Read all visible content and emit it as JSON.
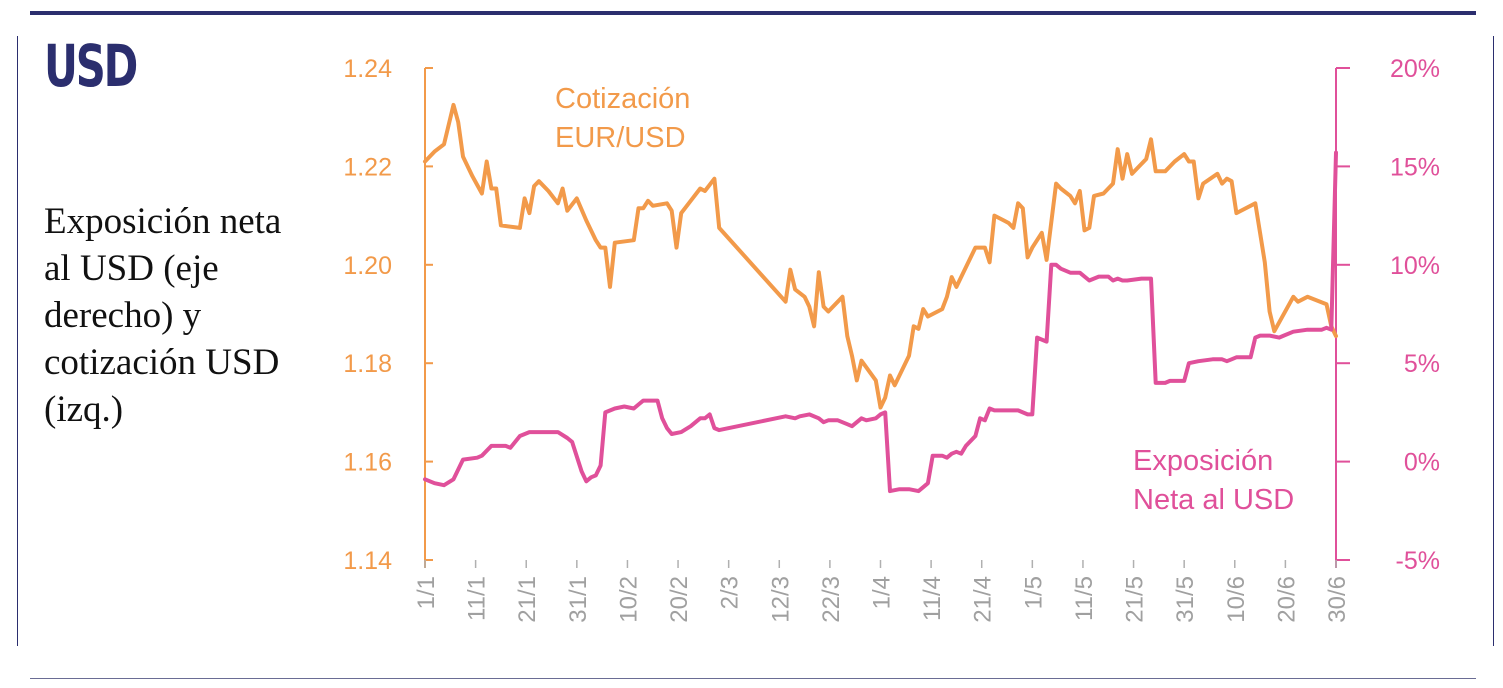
{
  "header": {
    "currency": "USD",
    "subtitle": "Exposición neta al USD (eje derecho) y cotización USD (izq.)"
  },
  "chart_data": {
    "type": "line",
    "dual_axis": true,
    "x_ticks": [
      "1/1",
      "11/1",
      "21/1",
      "31/1",
      "10/2",
      "20/2",
      "2/3",
      "12/3",
      "22/3",
      "1/4",
      "11/4",
      "21/4",
      "1/5",
      "11/5",
      "21/5",
      "31/5",
      "10/6",
      "20/6",
      "30/6"
    ],
    "y_left": {
      "ticks": [
        "1.24",
        "1.22",
        "1.20",
        "1.18",
        "1.16",
        "1.14"
      ],
      "range": [
        1.14,
        1.24
      ]
    },
    "y_right": {
      "ticks": [
        "20%",
        "15%",
        "10%",
        "5%",
        "0%",
        "-5%"
      ],
      "range": [
        -5,
        20
      ]
    },
    "grid": false,
    "legend": "inline-labels",
    "series": [
      {
        "name": "Cotización EUR/USD",
        "label_lines": [
          "Cotización",
          "EUR/USD"
        ],
        "axis": "left",
        "color": "#f29a4a",
        "points": [
          [
            0,
            1.221
          ],
          [
            2,
            1.223
          ],
          [
            4,
            1.2245
          ],
          [
            6,
            1.2325
          ],
          [
            7,
            1.229
          ],
          [
            8,
            1.222
          ],
          [
            10,
            1.218
          ],
          [
            12,
            1.2145
          ],
          [
            13,
            1.221
          ],
          [
            14,
            1.2155
          ],
          [
            15,
            1.2155
          ],
          [
            16,
            1.208
          ],
          [
            20,
            1.2075
          ],
          [
            21,
            1.2135
          ],
          [
            22,
            1.2105
          ],
          [
            23,
            1.216
          ],
          [
            24,
            1.217
          ],
          [
            26,
            1.215
          ],
          [
            28,
            1.2125
          ],
          [
            29,
            1.2155
          ],
          [
            30,
            1.211
          ],
          [
            32,
            1.2135
          ],
          [
            34,
            1.209
          ],
          [
            36,
            1.205
          ],
          [
            37,
            1.2035
          ],
          [
            38,
            1.2035
          ],
          [
            39,
            1.1955
          ],
          [
            40,
            1.2045
          ],
          [
            44,
            1.205
          ],
          [
            45,
            1.2115
          ],
          [
            46,
            1.2115
          ],
          [
            47,
            1.213
          ],
          [
            48,
            1.212
          ],
          [
            51,
            1.2125
          ],
          [
            52,
            1.211
          ],
          [
            53,
            1.2035
          ],
          [
            54,
            1.2105
          ],
          [
            56,
            1.213
          ],
          [
            58,
            1.2155
          ],
          [
            59,
            1.215
          ],
          [
            61,
            1.2175
          ],
          [
            62,
            1.2075
          ],
          [
            76,
            1.1925
          ],
          [
            77,
            1.199
          ],
          [
            78,
            1.195
          ],
          [
            80,
            1.1935
          ],
          [
            81,
            1.1915
          ],
          [
            82,
            1.1875
          ],
          [
            83,
            1.1985
          ],
          [
            84,
            1.1915
          ],
          [
            85,
            1.1905
          ],
          [
            88,
            1.1935
          ],
          [
            89,
            1.1855
          ],
          [
            90,
            1.1815
          ],
          [
            91,
            1.1765
          ],
          [
            92,
            1.1805
          ],
          [
            95,
            1.1765
          ],
          [
            96,
            1.171
          ],
          [
            97,
            1.173
          ],
          [
            98,
            1.1775
          ],
          [
            99,
            1.1755
          ],
          [
            102,
            1.1815
          ],
          [
            103,
            1.1875
          ],
          [
            104,
            1.187
          ],
          [
            105,
            1.191
          ],
          [
            106,
            1.1895
          ],
          [
            109,
            1.191
          ],
          [
            110,
            1.1935
          ],
          [
            111,
            1.1975
          ],
          [
            112,
            1.1955
          ],
          [
            116,
            1.2035
          ],
          [
            118,
            1.2035
          ],
          [
            119,
            1.2005
          ],
          [
            120,
            1.21
          ],
          [
            122,
            1.209
          ],
          [
            123,
            1.2085
          ],
          [
            124,
            1.2075
          ],
          [
            125,
            1.2125
          ],
          [
            126,
            1.2115
          ],
          [
            127,
            1.2015
          ],
          [
            128,
            1.2035
          ],
          [
            130,
            1.2065
          ],
          [
            131,
            1.201
          ],
          [
            133,
            1.2165
          ],
          [
            134,
            1.2155
          ],
          [
            136,
            1.214
          ],
          [
            137,
            1.2125
          ],
          [
            138,
            1.215
          ],
          [
            139,
            1.207
          ],
          [
            140,
            1.2075
          ],
          [
            141,
            1.214
          ],
          [
            143,
            1.2145
          ],
          [
            144,
            1.2155
          ],
          [
            145,
            1.2165
          ],
          [
            146,
            1.2235
          ],
          [
            147,
            1.2175
          ],
          [
            148,
            1.2225
          ],
          [
            149,
            1.2185
          ],
          [
            152,
            1.2215
          ],
          [
            153,
            1.2255
          ],
          [
            154,
            1.219
          ],
          [
            156,
            1.219
          ],
          [
            158,
            1.221
          ],
          [
            160,
            1.2225
          ],
          [
            161,
            1.221
          ],
          [
            162,
            1.221
          ],
          [
            163,
            1.2135
          ],
          [
            164,
            1.2165
          ],
          [
            167,
            1.2185
          ],
          [
            168,
            1.2165
          ],
          [
            169,
            1.2175
          ],
          [
            170,
            1.217
          ],
          [
            171,
            1.2105
          ],
          [
            175,
            1.2125
          ],
          [
            177,
            1.2005
          ],
          [
            178,
            1.1905
          ],
          [
            179,
            1.1865
          ],
          [
            183,
            1.1935
          ],
          [
            184,
            1.1925
          ],
          [
            186,
            1.1935
          ],
          [
            190,
            1.192
          ],
          [
            191,
            1.1875
          ],
          [
            192,
            1.1855
          ]
        ]
      },
      {
        "name": "Exposición Neta al USD",
        "label_lines": [
          "Exposición",
          "Neta al USD"
        ],
        "axis": "right",
        "color": "#e0509a",
        "points": [
          [
            0,
            -0.9
          ],
          [
            2,
            -1.1
          ],
          [
            4,
            -1.2
          ],
          [
            6,
            -0.9
          ],
          [
            8,
            0.1
          ],
          [
            11,
            0.2
          ],
          [
            12,
            0.3
          ],
          [
            14,
            0.8
          ],
          [
            17,
            0.8
          ],
          [
            18,
            0.7
          ],
          [
            20,
            1.3
          ],
          [
            22,
            1.5
          ],
          [
            28,
            1.5
          ],
          [
            30,
            1.2
          ],
          [
            31,
            1.0
          ],
          [
            33,
            -0.5
          ],
          [
            34,
            -1.0
          ],
          [
            35,
            -0.8
          ],
          [
            36,
            -0.7
          ],
          [
            37,
            -0.2
          ],
          [
            38,
            2.5
          ],
          [
            40,
            2.7
          ],
          [
            42,
            2.8
          ],
          [
            44,
            2.7
          ],
          [
            45,
            2.9
          ],
          [
            46,
            3.1
          ],
          [
            49,
            3.1
          ],
          [
            50,
            2.2
          ],
          [
            51,
            1.7
          ],
          [
            52,
            1.4
          ],
          [
            54,
            1.5
          ],
          [
            56,
            1.8
          ],
          [
            58,
            2.2
          ],
          [
            59,
            2.2
          ],
          [
            60,
            2.4
          ],
          [
            61,
            1.7
          ],
          [
            62,
            1.6
          ],
          [
            76,
            2.3
          ],
          [
            78,
            2.2
          ],
          [
            79,
            2.3
          ],
          [
            81,
            2.4
          ],
          [
            83,
            2.2
          ],
          [
            84,
            2.0
          ],
          [
            85,
            2.1
          ],
          [
            87,
            2.1
          ],
          [
            89,
            1.9
          ],
          [
            90,
            1.8
          ],
          [
            91,
            2.0
          ],
          [
            92,
            2.2
          ],
          [
            93,
            2.1
          ],
          [
            95,
            2.2
          ],
          [
            96,
            2.4
          ],
          [
            97,
            2.5
          ],
          [
            98,
            -1.5
          ],
          [
            100,
            -1.4
          ],
          [
            102,
            -1.4
          ],
          [
            104,
            -1.5
          ],
          [
            105,
            -1.3
          ],
          [
            106,
            -1.1
          ],
          [
            107,
            0.3
          ],
          [
            109,
            0.3
          ],
          [
            110,
            0.2
          ],
          [
            111,
            0.4
          ],
          [
            112,
            0.5
          ],
          [
            113,
            0.4
          ],
          [
            114,
            0.8
          ],
          [
            116,
            1.3
          ],
          [
            117,
            2.2
          ],
          [
            118,
            2.1
          ],
          [
            119,
            2.7
          ],
          [
            120,
            2.6
          ],
          [
            122,
            2.6
          ],
          [
            123,
            2.6
          ],
          [
            125,
            2.6
          ],
          [
            127,
            2.4
          ],
          [
            128,
            2.4
          ],
          [
            129,
            6.3
          ],
          [
            130,
            6.2
          ],
          [
            131,
            6.1
          ],
          [
            132,
            10.0
          ],
          [
            133,
            10.0
          ],
          [
            134,
            9.8
          ],
          [
            136,
            9.6
          ],
          [
            137,
            9.6
          ],
          [
            138,
            9.6
          ],
          [
            140,
            9.2
          ],
          [
            142,
            9.4
          ],
          [
            144,
            9.4
          ],
          [
            145,
            9.2
          ],
          [
            146,
            9.3
          ],
          [
            147,
            9.2
          ],
          [
            148,
            9.2
          ],
          [
            151,
            9.3
          ],
          [
            153,
            9.3
          ],
          [
            154,
            4.0
          ],
          [
            155,
            4.0
          ],
          [
            156,
            4.0
          ],
          [
            157,
            4.1
          ],
          [
            158,
            4.1
          ],
          [
            159,
            4.1
          ],
          [
            160,
            4.1
          ],
          [
            161,
            5.0
          ],
          [
            163,
            5.1
          ],
          [
            166,
            5.2
          ],
          [
            168,
            5.2
          ],
          [
            169,
            5.1
          ],
          [
            170,
            5.2
          ],
          [
            171,
            5.3
          ],
          [
            174,
            5.3
          ],
          [
            175,
            6.3
          ],
          [
            176,
            6.4
          ],
          [
            178,
            6.4
          ],
          [
            180,
            6.3
          ],
          [
            181,
            6.4
          ],
          [
            183,
            6.6
          ],
          [
            186,
            6.7
          ],
          [
            189,
            6.7
          ],
          [
            190,
            6.8
          ],
          [
            191,
            6.7
          ],
          [
            192,
            15.7
          ]
        ]
      }
    ]
  }
}
